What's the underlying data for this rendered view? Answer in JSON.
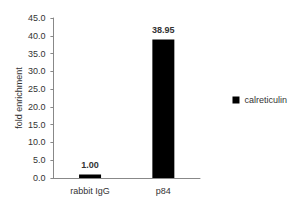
{
  "chart_data": {
    "type": "bar",
    "y_label": "fold enrichment",
    "categories": [
      "rabbit IgG",
      "p84"
    ],
    "series": [
      {
        "name": "calreticulin",
        "color": "#000000",
        "values": [
          1.0,
          38.95
        ],
        "value_labels": [
          "1.00",
          "38.95"
        ]
      }
    ],
    "ylim": [
      0,
      45
    ],
    "yticks": [
      {
        "value": 0,
        "label": "0.0"
      },
      {
        "value": 5,
        "label": "5.0"
      },
      {
        "value": 10,
        "label": "10.0"
      },
      {
        "value": 15,
        "label": "15.0"
      },
      {
        "value": 20,
        "label": "20.0"
      },
      {
        "value": 25,
        "label": "25.0"
      },
      {
        "value": 30,
        "label": "30.0"
      },
      {
        "value": 35,
        "label": "35.0"
      },
      {
        "value": 40,
        "label": "40.0"
      },
      {
        "value": 45,
        "label": "45.0"
      }
    ],
    "grid": false,
    "legend": "right",
    "data_labels": true
  }
}
